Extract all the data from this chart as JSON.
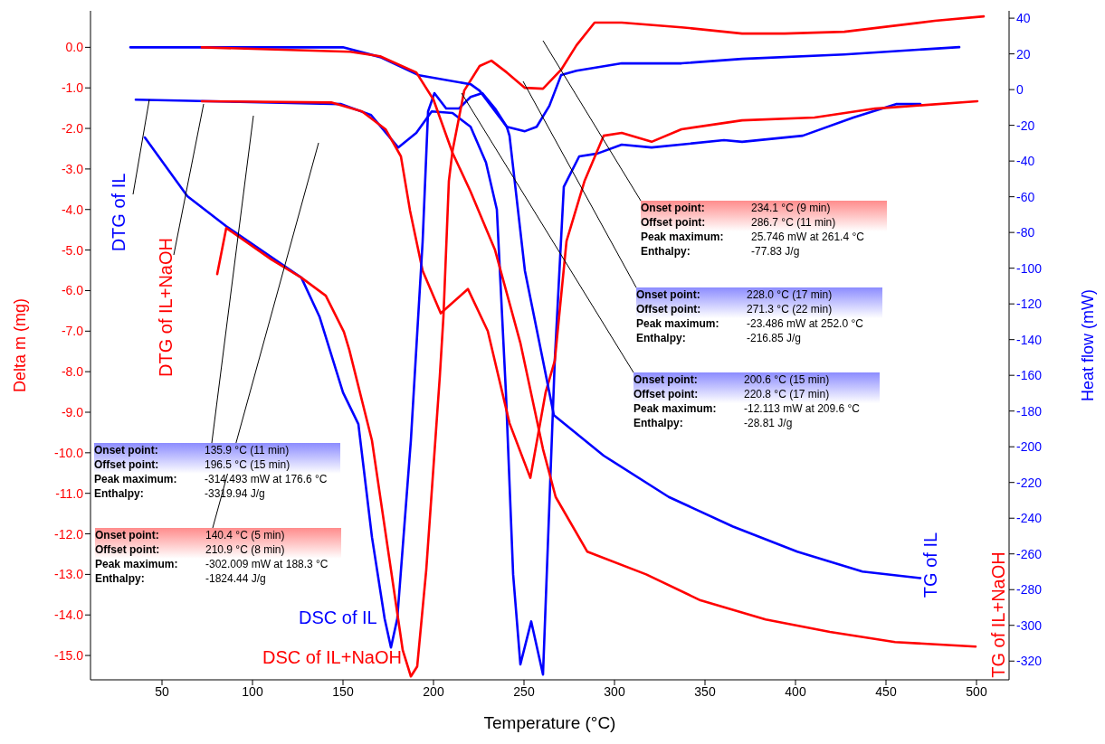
{
  "chart_data": {
    "type": "line",
    "xlabel": "Temperature (°C)",
    "ylabel": "Delta m (mg)",
    "y2label": "Heat flow (mW)",
    "xlim": [
      10.5,
      518
    ],
    "xticks": [
      50,
      100,
      150,
      200,
      250,
      300,
      350,
      400,
      450,
      500
    ],
    "ylim": [
      -15.6,
      0.9
    ],
    "yticks": [
      {
        "value": 0,
        "label": "0.0"
      },
      {
        "value": -1,
        "label": "-1.0"
      },
      {
        "value": -2,
        "label": "-2.0"
      },
      {
        "value": -3,
        "label": "-3.0"
      },
      {
        "value": -4,
        "label": "-4.0"
      },
      {
        "value": -5,
        "label": "-5.0"
      },
      {
        "value": -6,
        "label": "-6.0"
      },
      {
        "value": -7,
        "label": "-7.0"
      },
      {
        "value": -8,
        "label": "-8.0"
      },
      {
        "value": -9,
        "label": "-9.0"
      },
      {
        "value": -10,
        "label": "-10.0"
      },
      {
        "value": -11,
        "label": "-11.0"
      },
      {
        "value": -12,
        "label": "-12.0"
      },
      {
        "value": -13,
        "label": "-13.0"
      },
      {
        "value": -14,
        "label": "-14.0"
      },
      {
        "value": -15,
        "label": "-15.0"
      }
    ],
    "y2lim": [
      -330.5,
      44.1
    ],
    "y2ticks": [
      40,
      20,
      0,
      -20,
      -40,
      -60,
      -80,
      -100,
      -120,
      -140,
      -160,
      -180,
      -200,
      -220,
      -240,
      -260,
      -280,
      -300,
      -320
    ],
    "marker": "none",
    "line_style": "solid",
    "series": [
      {
        "name": "DTG of IL",
        "color": "#0000ff",
        "axis": "y",
        "x": [
          35.5,
          149,
          165.5,
          180.5,
          190.5,
          199,
          210.5,
          220.5,
          229,
          235,
          240,
          244,
          248,
          254,
          260.5,
          267,
          272,
          280.5,
          290.5,
          304,
          320.5,
          360.5,
          370.5,
          404,
          432,
          455.5,
          469
        ],
        "values": [
          -1.29,
          -1.4,
          -1.67,
          -2.47,
          -2.11,
          -1.58,
          -1.62,
          -1.96,
          -2.84,
          -4.0,
          -8.5,
          -13.0,
          -15.22,
          -14.16,
          -15.47,
          -7.73,
          -3.44,
          -2.69,
          -2.62,
          -2.4,
          -2.47,
          -2.29,
          -2.33,
          -2.18,
          -1.73,
          -1.4,
          -1.4
        ]
      },
      {
        "name": "DTG of IL+NaOH",
        "color": "#ff0000",
        "axis": "y",
        "x": [
          72,
          143.5,
          160.5,
          173.5,
          182,
          187,
          194,
          204,
          219,
          230,
          242,
          253.5,
          262,
          267,
          273.5,
          283.5,
          294,
          304,
          320.5,
          337,
          370.5,
          410.5,
          444,
          500.5
        ],
        "values": [
          -1.33,
          -1.36,
          -1.58,
          -2.02,
          -2.69,
          -4.02,
          -5.51,
          -6.56,
          -5.96,
          -7.0,
          -9.27,
          -10.62,
          -8.5,
          -7.73,
          -4.78,
          -3.29,
          -2.18,
          -2.11,
          -2.33,
          -2.02,
          -1.8,
          -1.73,
          -1.51,
          -1.33
        ]
      },
      {
        "name": "DSC of IL",
        "color": "#0000ff",
        "axis": "y2",
        "x": [
          40.5,
          64,
          85.5,
          127,
          137,
          150,
          158.5,
          166,
          173,
          176.5,
          180,
          187.5,
          194,
          197,
          200.5,
          207,
          214,
          220.5,
          227,
          234,
          240.5,
          250.5,
          257,
          264,
          270.5,
          279,
          304,
          337,
          370.5,
          427,
          490.5
        ],
        "values": [
          -26.8,
          -59.7,
          -76.5,
          -105.3,
          -127.1,
          -169.6,
          -187.3,
          -250.6,
          -296.2,
          -312.4,
          -296.2,
          -196.5,
          -85.1,
          -12.2,
          -2.0,
          -10.6,
          -10.6,
          -4.1,
          -2.0,
          -10.6,
          -20.8,
          -23.3,
          -20.8,
          -9.1,
          8.1,
          10.6,
          14.7,
          14.7,
          17.2,
          19.7,
          23.8
        ]
      },
      {
        "name": "DSC of IL+NaOH",
        "color": "#ff0000",
        "axis": "y2",
        "x": [
          80.5,
          85.5,
          110.5,
          127,
          140.5,
          150.5,
          153.5,
          166,
          176.5,
          183,
          187.5,
          191,
          196,
          203.5,
          205.5,
          208.5,
          210.5,
          217,
          225.5,
          232,
          240.5,
          250.5,
          260.5,
          270.5,
          279,
          289,
          304,
          337,
          370.5,
          394,
          427,
          477,
          504
        ],
        "values": [
          -103.3,
          -77.5,
          -95.2,
          -105.3,
          -115.4,
          -135.7,
          -145.8,
          -196.5,
          -268.9,
          -313.9,
          -328.6,
          -323,
          -268.9,
          -160.5,
          -127.1,
          -51.1,
          -34.4,
          -0.5,
          13.2,
          16.2,
          9.6,
          1.0,
          0.5,
          11.1,
          24.8,
          37.5,
          37.5,
          34.9,
          31.4,
          31.4,
          32.4,
          38.5,
          41
        ]
      },
      {
        "name": "TG of IL",
        "color": "#0000ff",
        "axis": "y",
        "x": [
          32.5,
          150,
          170.5,
          192,
          220.5,
          225.5,
          240.5,
          242,
          250.5,
          260.5,
          266.5,
          294,
          330,
          365.5,
          401,
          437,
          469
        ],
        "values": [
          0,
          0,
          -0.24,
          -0.69,
          -0.91,
          -1.07,
          -1.96,
          -2.18,
          -5.51,
          -7.73,
          -9.07,
          -10.07,
          -11.09,
          -11.82,
          -12.44,
          -12.93,
          -13.09
        ]
      },
      {
        "name": "TG of IL+NaOH",
        "color": "#ff0000",
        "axis": "y",
        "x": [
          72,
          154,
          170.5,
          190.5,
          200,
          210.5,
          220.5,
          234,
          248,
          260.5,
          267.5,
          285,
          317.5,
          347.5,
          383.5,
          419,
          455,
          499.5
        ],
        "values": [
          0,
          -0.11,
          -0.22,
          -0.62,
          -1.29,
          -2.6,
          -3.56,
          -5.0,
          -7.29,
          -9.91,
          -11.09,
          -12.44,
          -13.0,
          -13.64,
          -14.11,
          -14.42,
          -14.67,
          -14.78
        ]
      }
    ],
    "annotations": [
      "Onset point: 234.1 °C (9 min)\nOffset point: 286.7 °C (11 min)\nPeak maximum: 25.746 mW at 261.4 °C\nEnthalpy: -77.83 J/g",
      "Onset point: 228.0 °C (17 min)\nOffset point: 271.3 °C (22 min)\nPeak maximum: -23.486 mW at 252.0 °C\nEnthalpy: -216.85 J/g",
      "Onset point: 200.6 °C (15 min)\nOffset point: 220.8 °C (17 min)\nPeak maximum: -12.113 mW at 209.6 °C\nEnthalpy: -28.81 J/g",
      "Onset point: 135.9 °C (11 min)\nOffset point: 196.5 °C (15 min)\nPeak maximum: -314.493 mW at 176.6 °C\nEnthalpy: -3319.94 J/g",
      "Onset point: 140.4 °C (5 min)\nOffset point: 210.9 °C (8 min)\nPeak maximum: -302.009 mW at 188.3 °C\nEnthalpy: -1824.44 J/g"
    ]
  }
}
